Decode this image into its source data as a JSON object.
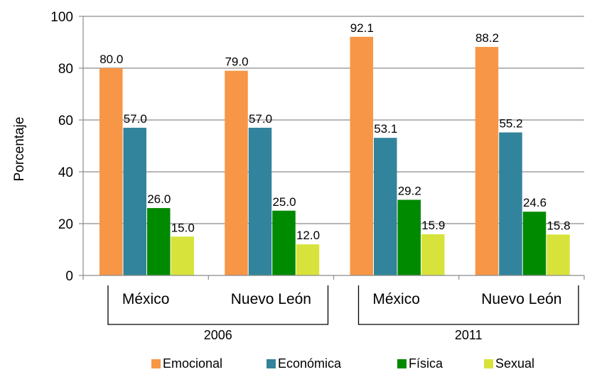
{
  "chart_data": {
    "type": "bar",
    "ylabel": "Porcentaje",
    "ylim": [
      0,
      100
    ],
    "yticks": [
      "0",
      "20",
      "40",
      "60",
      "80",
      "100"
    ],
    "grid": true,
    "legend_position": "bottom",
    "groups": [
      {
        "label": "2006",
        "categories": [
          "México",
          "Nuevo León"
        ]
      },
      {
        "label": "2011",
        "categories": [
          "México",
          "Nuevo León"
        ]
      }
    ],
    "categories": [
      "México",
      "Nuevo León",
      "México",
      "Nuevo León"
    ],
    "series": [
      {
        "name": "Emocional",
        "color": "#F79646",
        "values": [
          80.0,
          79.0,
          92.1,
          88.2
        ],
        "labels": [
          "80.0",
          "79.0",
          "92.1",
          "88.2"
        ]
      },
      {
        "name": "Económica",
        "color": "#31849B",
        "values": [
          57.0,
          57.0,
          53.1,
          55.2
        ],
        "labels": [
          "57.0",
          "57.0",
          "53.1",
          "55.2"
        ]
      },
      {
        "name": "Física",
        "color": "#008A00",
        "values": [
          26.0,
          25.0,
          29.2,
          24.6
        ],
        "labels": [
          "26.0",
          "25.0",
          "29.2",
          "24.6"
        ]
      },
      {
        "name": "Sexual",
        "color": "#D7E33B",
        "values": [
          15.0,
          12.0,
          15.9,
          15.8
        ],
        "labels": [
          "15.0",
          "12.0",
          "15.9",
          "15.8"
        ]
      }
    ]
  }
}
